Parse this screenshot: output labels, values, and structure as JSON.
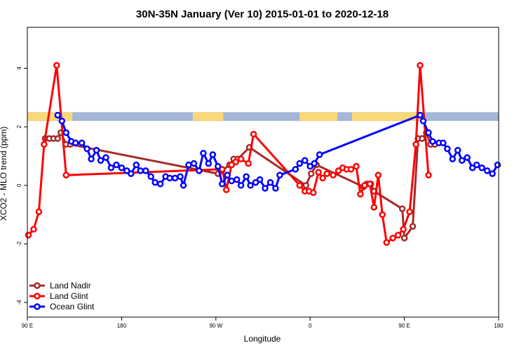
{
  "chart_data": {
    "type": "line",
    "title": "30N-35N January (Ver 10)   2015-01-01 to 2020-12-18",
    "xlabel": "Longitude",
    "ylabel": "XCO2 - MLO trend (ppm)",
    "xlim": [
      90,
      540
    ],
    "ylim": [
      -4.5,
      5.4
    ],
    "x_ticks": [
      {
        "value": 90,
        "label": "90 E"
      },
      {
        "value": 180,
        "label": "180"
      },
      {
        "value": 270,
        "label": "90 W"
      },
      {
        "value": 360,
        "label": "0"
      },
      {
        "value": 450,
        "label": "90 E"
      },
      {
        "value": 540,
        "label": "180"
      }
    ],
    "y_ticks": [
      {
        "value": -4,
        "label": "-4"
      },
      {
        "value": -2,
        "label": "-2"
      },
      {
        "value": 0,
        "label": "0"
      },
      {
        "value": 2,
        "label": "2"
      },
      {
        "value": 4,
        "label": "4"
      }
    ],
    "grid": false,
    "legend_position": "bottom-left",
    "land_ocean_strip": {
      "y_range": [
        2.2,
        2.5
      ],
      "land_color": "#fad87a",
      "ocean_color": "#a5b7d8",
      "land_segments": [
        [
          90,
          133
        ],
        [
          248,
          277
        ],
        [
          350,
          386
        ],
        [
          400,
          470
        ]
      ]
    },
    "series": [
      {
        "name": "Land Nadir",
        "color": "#a52a2a",
        "points": [
          [
            107,
            1.6
          ],
          [
            111,
            1.6
          ],
          [
            115,
            1.6
          ],
          [
            119,
            1.6
          ],
          [
            122,
            1.8
          ],
          [
            127,
            1.4
          ],
          [
            131,
            1.4
          ],
          [
            272,
            0.4
          ],
          [
            276,
            0.5
          ],
          [
            283,
            0.7
          ],
          [
            287,
            0.9
          ],
          [
            291,
            0.9
          ],
          [
            302,
            1.3
          ],
          [
            356,
            0.0
          ],
          [
            361,
            0.4
          ],
          [
            366,
            0.7
          ],
          [
            411,
            -0.05
          ],
          [
            414,
            0.05
          ],
          [
            418,
            0.05
          ],
          [
            421,
            -0.2
          ],
          [
            448,
            -0.8
          ],
          [
            450,
            -1.8
          ],
          [
            458,
            -1.4
          ],
          [
            463,
            1.6
          ],
          [
            467,
            1.6
          ],
          [
            471,
            1.8
          ],
          [
            475,
            1.4
          ],
          [
            479,
            1.4
          ]
        ]
      },
      {
        "name": "Land Glint",
        "color": "#ff0000",
        "points": [
          [
            91,
            -1.7
          ],
          [
            96,
            -1.5
          ],
          [
            101,
            -0.9
          ],
          [
            106,
            1.4
          ],
          [
            118,
            4.1
          ],
          [
            127,
            0.35
          ],
          [
            276,
            0.55
          ],
          [
            280,
            -0.15
          ],
          [
            285,
            0.7
          ],
          [
            289,
            0.8
          ],
          [
            294,
            0.9
          ],
          [
            301,
            0.75
          ],
          [
            306,
            1.75
          ],
          [
            350,
            0.0
          ],
          [
            355,
            -0.2
          ],
          [
            359,
            -0.2
          ],
          [
            363,
            -0.25
          ],
          [
            368,
            0.45
          ],
          [
            372,
            0.25
          ],
          [
            376,
            0.4
          ],
          [
            382,
            0.35
          ],
          [
            387,
            0.5
          ],
          [
            391,
            0.6
          ],
          [
            395,
            0.55
          ],
          [
            399,
            0.55
          ],
          [
            404,
            0.65
          ],
          [
            408,
            -0.3
          ],
          [
            412,
            0.0
          ],
          [
            417,
            0.05
          ],
          [
            421,
            -0.75
          ],
          [
            425,
            0.35
          ],
          [
            429,
            -1.0
          ],
          [
            433,
            -1.95
          ],
          [
            439,
            -1.8
          ],
          [
            444,
            -1.7
          ],
          [
            449,
            -1.5
          ],
          [
            455,
            -0.9
          ],
          [
            461,
            1.4
          ],
          [
            465,
            4.1
          ],
          [
            473,
            0.35
          ]
        ]
      },
      {
        "name": "Ocean Glint",
        "color": "#0000ff",
        "points": [
          [
            119,
            2.4
          ],
          [
            123,
            2.2
          ],
          [
            127,
            1.8
          ],
          [
            132,
            1.5
          ],
          [
            136,
            1.45
          ],
          [
            142,
            1.45
          ],
          [
            147,
            1.25
          ],
          [
            151,
            0.9
          ],
          [
            156,
            1.2
          ],
          [
            160,
            0.85
          ],
          [
            165,
            0.95
          ],
          [
            170,
            0.6
          ],
          [
            175,
            0.7
          ],
          [
            180,
            0.6
          ],
          [
            185,
            0.5
          ],
          [
            189,
            0.4
          ],
          [
            194,
            0.7
          ],
          [
            198,
            0.5
          ],
          [
            203,
            0.5
          ],
          [
            208,
            0.3
          ],
          [
            212,
            0.1
          ],
          [
            217,
            0.05
          ],
          [
            222,
            0.3
          ],
          [
            226,
            0.25
          ],
          [
            231,
            0.25
          ],
          [
            236,
            0.3
          ],
          [
            239,
            0.0
          ],
          [
            244,
            0.7
          ],
          [
            249,
            0.75
          ],
          [
            254,
            0.5
          ],
          [
            258,
            1.1
          ],
          [
            263,
            0.75
          ],
          [
            267,
            1.05
          ],
          [
            272,
            0.65
          ],
          [
            276,
            0.05
          ],
          [
            281,
            0.35
          ],
          [
            285,
            0.15
          ],
          [
            290,
            0.2
          ],
          [
            294,
            0.0
          ],
          [
            299,
            0.3
          ],
          [
            303,
            0.0
          ],
          [
            308,
            0.1
          ],
          [
            312,
            0.2
          ],
          [
            317,
            -0.1
          ],
          [
            322,
            0.1
          ],
          [
            327,
            -0.1
          ],
          [
            331,
            0.35
          ],
          [
            346,
            0.55
          ],
          [
            350,
            0.75
          ],
          [
            355,
            0.85
          ],
          [
            360,
            0.65
          ],
          [
            364,
            0.75
          ],
          [
            369,
            1.05
          ],
          [
            465,
            2.4
          ],
          [
            468,
            2.2
          ],
          [
            473,
            1.8
          ],
          [
            477,
            1.5
          ],
          [
            483,
            1.45
          ],
          [
            487,
            1.45
          ],
          [
            491,
            1.25
          ],
          [
            496,
            0.9
          ],
          [
            501,
            1.2
          ],
          [
            505,
            0.85
          ],
          [
            510,
            0.95
          ],
          [
            515,
            0.6
          ],
          [
            519,
            0.7
          ],
          [
            524,
            0.6
          ],
          [
            529,
            0.5
          ],
          [
            534,
            0.4
          ],
          [
            539,
            0.7
          ]
        ]
      }
    ]
  }
}
